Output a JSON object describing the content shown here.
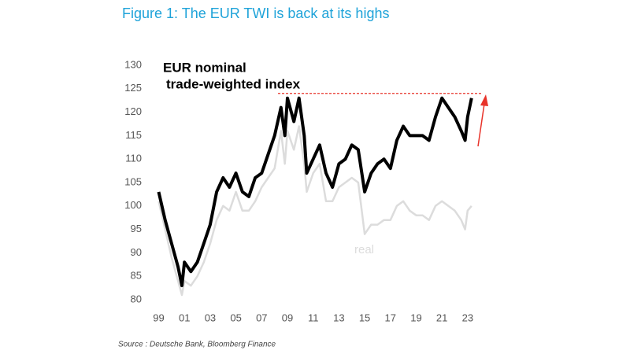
{
  "chart_data": {
    "type": "line",
    "title": "Figure 1: The EUR TWI is back at its highs",
    "annotations": [
      "EUR nominal",
      "trade-weighted index"
    ],
    "source": "Source : Deutsche Bank, Bloomberg Finance",
    "x": [
      1999,
      1999.5,
      2000,
      2000.5,
      2000.8,
      2001,
      2001.5,
      2002,
      2002.5,
      2003,
      2003.5,
      2004,
      2004.5,
      2005,
      2005.5,
      2006,
      2006.5,
      2007,
      2007.5,
      2008,
      2008.5,
      2008.8,
      2009,
      2009.5,
      2009.9,
      2010.3,
      2010.5,
      2011,
      2011.5,
      2012,
      2012.5,
      2013,
      2013.5,
      2014,
      2014.5,
      2015,
      2015.5,
      2016,
      2016.5,
      2017,
      2017.5,
      2018,
      2018.5,
      2019,
      2019.5,
      2020,
      2020.5,
      2021,
      2021.5,
      2022,
      2022.5,
      2022.8,
      2023,
      2023.3
    ],
    "series": [
      {
        "color": "#dcdcdc",
        "name": "real",
        "values": [
          101,
          95,
          89,
          84,
          81,
          84,
          83,
          85,
          88,
          92,
          97,
          100,
          99,
          103,
          99,
          99,
          101,
          104,
          106,
          108,
          116,
          109,
          116,
          112,
          117,
          109,
          103,
          107,
          109,
          101,
          101,
          104,
          105,
          106,
          105,
          94,
          96,
          96,
          97,
          97,
          100,
          101,
          99,
          98,
          98,
          97,
          100,
          101,
          100,
          99,
          97,
          95,
          99,
          100
        ]
      },
      {
        "color": "#000000",
        "values": [
          103,
          97,
          92,
          87,
          83,
          88,
          86,
          88,
          92,
          96,
          103,
          106,
          104,
          107,
          103,
          102,
          106,
          107,
          111,
          115,
          121,
          115,
          123,
          118,
          123,
          115,
          107,
          110,
          113,
          107,
          104,
          109,
          110,
          113,
          112,
          103,
          107,
          109,
          110,
          108,
          114,
          117,
          115,
          115,
          115,
          114,
          119,
          123,
          121,
          119,
          116,
          114,
          119,
          123
        ]
      }
    ],
    "reference_line": {
      "value": 124,
      "color": "#e8332a"
    },
    "xlim": [
      1998.6,
      2024.6
    ],
    "xticks": [
      {
        "value": 1999,
        "label": "99"
      },
      {
        "value": 2001,
        "label": "01"
      },
      {
        "value": 2003,
        "label": "03"
      },
      {
        "value": 2005,
        "label": "05"
      },
      {
        "value": 2007,
        "label": "07"
      },
      {
        "value": 2009,
        "label": "09"
      },
      {
        "value": 2011,
        "label": "11"
      },
      {
        "value": 2013,
        "label": "13"
      },
      {
        "value": 2015,
        "label": "15"
      },
      {
        "value": 2017,
        "label": "17"
      },
      {
        "value": 2019,
        "label": "19"
      },
      {
        "value": 2021,
        "label": "21"
      },
      {
        "value": 2023,
        "label": "23"
      }
    ],
    "ylim": [
      80,
      130
    ],
    "yticks": [
      80,
      85,
      90,
      95,
      100,
      105,
      110,
      115,
      120,
      125,
      130
    ],
    "grid": false
  }
}
